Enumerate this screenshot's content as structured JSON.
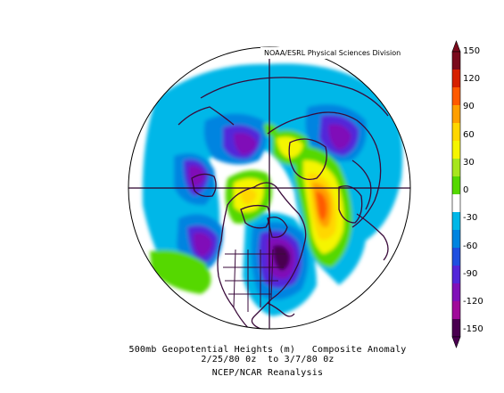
{
  "map": {
    "credit": "NOAA/ESRL Physical Sciences Division",
    "caption_line1": "500mb Geopotential Heights (m)   Composite Anomaly",
    "caption_line2": "2/25/80 0z  to 3/7/80 0z",
    "caption_line3": "NCEP/NCAR Reanalysis",
    "projection": "north polar stereographic",
    "icons": [
      "polar-map-disc",
      "colorbar"
    ]
  },
  "colorbar": {
    "ticks": [
      "150",
      "120",
      "90",
      "60",
      "30",
      "0",
      "-30",
      "-60",
      "-90",
      "-120",
      "-150"
    ],
    "colors": [
      "#7a0a1c",
      "#d62000",
      "#ff5a00",
      "#ff9f00",
      "#ffd700",
      "#f5f500",
      "#a7e61e",
      "#55d800",
      "#ffffff",
      "#00b7e8",
      "#0084e0",
      "#1f4fe0",
      "#5326d9",
      "#8010b8",
      "#a00b9a",
      "#4a0050"
    ]
  },
  "colors": {
    "coast": "#3a0a3a",
    "grid": "#2a002a",
    "land_white": "#ffffff"
  }
}
